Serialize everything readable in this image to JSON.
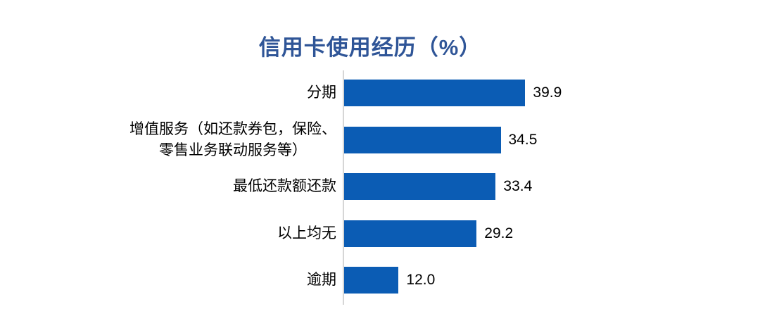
{
  "title": "信用卡使用经历（%）",
  "chart_data": {
    "type": "bar",
    "orientation": "horizontal",
    "title": "信用卡使用经历（%）",
    "categories": [
      "分期",
      "增值服务（如还款券包，保险、\n零售业务联动服务等）",
      "最低还款额还款",
      "以上均无",
      "逾期"
    ],
    "values": [
      39.9,
      34.5,
      33.4,
      29.2,
      12.0
    ],
    "value_labels": [
      "39.9",
      "34.5",
      "33.4",
      "29.2",
      "12.0"
    ],
    "xlabel": "",
    "ylabel": "",
    "xlim": [
      0,
      40
    ],
    "grid": false,
    "legend": false,
    "data_labels_position": "outside-end",
    "bar_color": "#0B5CB4",
    "title_color": "#2F5597",
    "axis_line_color": "#D6D6D6",
    "label_color": "#000000"
  }
}
